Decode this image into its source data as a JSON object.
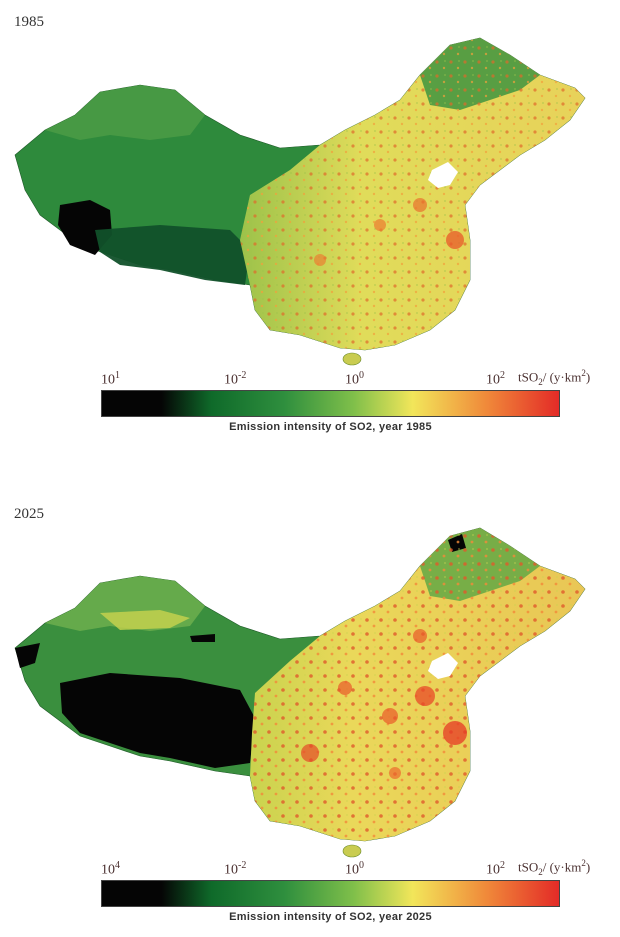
{
  "panels": [
    {
      "year_label": "1985",
      "ticks": {
        "t1": "10",
        "t1_exp": "1",
        "t2": "10",
        "t2_exp": "-2",
        "t3": "10",
        "t3_exp": "0",
        "t4": "10",
        "t4_exp": "2"
      },
      "unit": {
        "main": "tSO",
        "sub": "2",
        "rest": "/ (y·km",
        "sup": "2",
        "close": ")"
      },
      "caption": "Emission intensity of SO2, year 1985"
    },
    {
      "year_label": "2025",
      "ticks": {
        "t1": "10",
        "t1_exp": "4",
        "t2": "10",
        "t2_exp": "-2",
        "t3": "10",
        "t3_exp": "0",
        "t4": "10",
        "t4_exp": "2"
      },
      "unit": {
        "main": "tSO",
        "sub": "2",
        "rest": "/ (y·km",
        "sup": "2",
        "close": ")"
      },
      "caption": "Emission intensity of SO2, year 2025"
    }
  ],
  "colors": {
    "low": "#050505",
    "green_dark": "#0f6a2a",
    "green": "#2f8f3e",
    "green_light": "#7fbf4a",
    "yellow": "#f2e65a",
    "orange": "#f08a3a",
    "high": "#e32b27"
  }
}
